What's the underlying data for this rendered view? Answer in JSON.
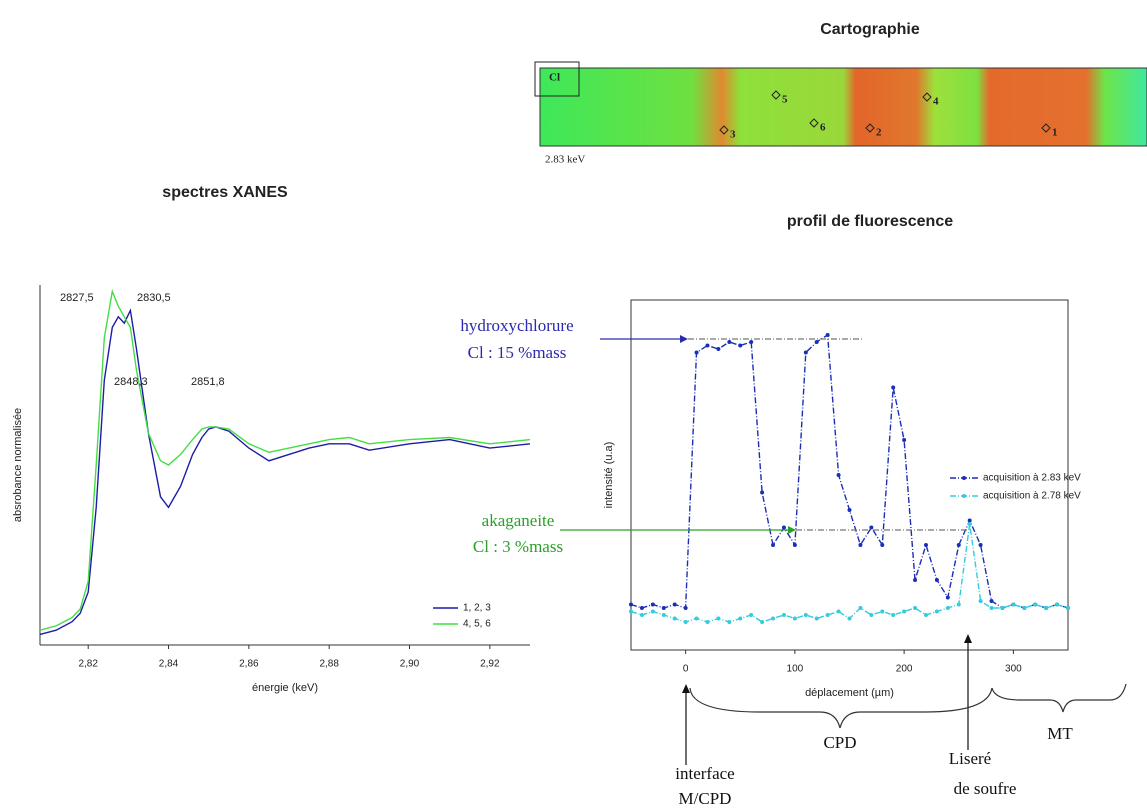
{
  "map": {
    "title": "Cartographie",
    "element": "Cl",
    "energy": "2.83 keV",
    "points": [
      "1",
      "2",
      "3",
      "4",
      "5",
      "6"
    ]
  },
  "chart_data": [
    {
      "type": "line",
      "title": "spectres XANES",
      "x_label": "énergie (keV)",
      "y_label": "absrobance normalisée",
      "x": [
        2.808,
        2.812,
        2.816,
        2.818,
        2.82,
        2.822,
        2.824,
        2.826,
        2.8275,
        2.829,
        2.8305,
        2.832,
        2.835,
        2.838,
        2.84,
        2.843,
        2.846,
        2.8483,
        2.85,
        2.8518,
        2.855,
        2.86,
        2.865,
        2.87,
        2.875,
        2.88,
        2.885,
        2.89,
        2.9,
        2.91,
        2.92,
        2.93
      ],
      "series": [
        {
          "name": "1, 2, 3",
          "color": "#1c1ca8",
          "values": [
            0.0,
            0.02,
            0.06,
            0.1,
            0.2,
            0.6,
            1.2,
            1.45,
            1.5,
            1.47,
            1.53,
            1.35,
            0.95,
            0.65,
            0.6,
            0.7,
            0.85,
            0.93,
            0.97,
            0.98,
            0.96,
            0.88,
            0.82,
            0.85,
            0.88,
            0.9,
            0.9,
            0.87,
            0.9,
            0.92,
            0.88,
            0.9
          ]
        },
        {
          "name": "4, 5, 6",
          "color": "#44dd44",
          "values": [
            0.02,
            0.04,
            0.08,
            0.12,
            0.25,
            0.8,
            1.4,
            1.62,
            1.55,
            1.5,
            1.45,
            1.25,
            0.95,
            0.82,
            0.8,
            0.85,
            0.92,
            0.97,
            0.98,
            0.98,
            0.97,
            0.9,
            0.86,
            0.88,
            0.9,
            0.92,
            0.93,
            0.9,
            0.92,
            0.93,
            0.9,
            0.92
          ]
        }
      ],
      "xlim": [
        2.808,
        2.93
      ],
      "xticks": [
        {
          "value": 2.82,
          "label": "2,82"
        },
        {
          "value": 2.84,
          "label": "2,84"
        },
        {
          "value": 2.86,
          "label": "2,86"
        },
        {
          "value": 2.88,
          "label": "2,88"
        },
        {
          "value": 2.9,
          "label": "2,90"
        },
        {
          "value": 2.92,
          "label": "2,92"
        }
      ],
      "ylim": [
        -0.05,
        1.65
      ],
      "legend": "lower right",
      "annotations": [
        "2827,5",
        "2830,5",
        "2848,3",
        "2851,8"
      ]
    },
    {
      "type": "line",
      "title": "profil de fluorescence",
      "x_label": "déplacement (µm)",
      "y_label": "intensité (u.a)",
      "x": [
        -50,
        -40,
        -30,
        -20,
        -10,
        0,
        10,
        20,
        30,
        40,
        50,
        60,
        70,
        80,
        90,
        100,
        110,
        120,
        130,
        140,
        150,
        160,
        170,
        180,
        190,
        200,
        210,
        220,
        230,
        240,
        250,
        260,
        270,
        280,
        290,
        300,
        310,
        320,
        330,
        340,
        350
      ],
      "series": [
        {
          "name": "acquisition à 2.83 keV",
          "color": "#1a2fb8",
          "values": [
            0.13,
            0.12,
            0.13,
            0.12,
            0.13,
            0.12,
            0.85,
            0.87,
            0.86,
            0.88,
            0.87,
            0.88,
            0.45,
            0.3,
            0.35,
            0.3,
            0.85,
            0.88,
            0.9,
            0.5,
            0.4,
            0.3,
            0.35,
            0.3,
            0.75,
            0.6,
            0.2,
            0.3,
            0.2,
            0.15,
            0.3,
            0.37,
            0.3,
            0.14,
            0.12,
            0.13,
            0.12,
            0.13,
            0.12,
            0.13,
            0.12
          ]
        },
        {
          "name": "acquisition à 2.78 keV",
          "color": "#33ccdd",
          "values": [
            0.11,
            0.1,
            0.11,
            0.1,
            0.09,
            0.08,
            0.09,
            0.08,
            0.09,
            0.08,
            0.09,
            0.1,
            0.08,
            0.09,
            0.1,
            0.09,
            0.1,
            0.09,
            0.1,
            0.11,
            0.09,
            0.12,
            0.1,
            0.11,
            0.1,
            0.11,
            0.12,
            0.1,
            0.11,
            0.12,
            0.13,
            0.36,
            0.14,
            0.12,
            0.12,
            0.13,
            0.12,
            0.13,
            0.12,
            0.13,
            0.12
          ]
        }
      ],
      "xlim": [
        -50,
        350
      ],
      "xticks": [
        0,
        100,
        200,
        300
      ],
      "ylim": [
        0,
        1
      ],
      "legend": "right",
      "annotations": [
        "hydroxychlorure",
        "Cl : 15 %mass",
        "akaganeite",
        "Cl : 3 %mass",
        "interface",
        "M/CPD",
        "CPD",
        "Liseré",
        "de soufre",
        "MT"
      ]
    }
  ]
}
